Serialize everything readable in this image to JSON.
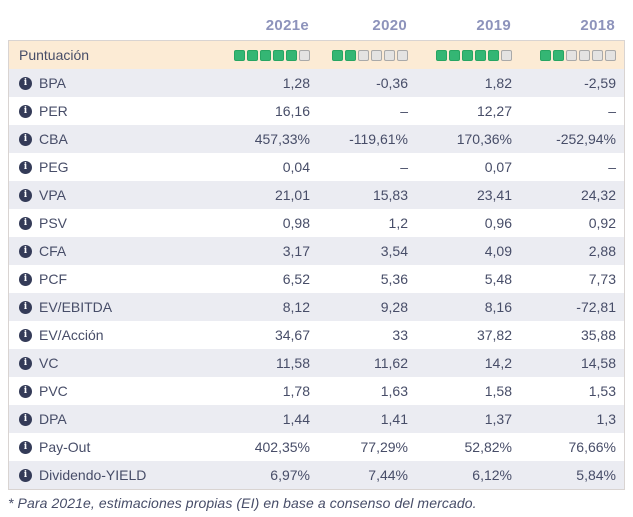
{
  "chart_data": {
    "type": "table",
    "columns": [
      "2021e",
      "2020",
      "2019",
      "2018"
    ],
    "score_row": {
      "label": "Puntuación",
      "max": 6,
      "filled": [
        5,
        2,
        5,
        2
      ]
    },
    "rows": [
      {
        "label": "BPA",
        "values": [
          "1,28",
          "-0,36",
          "1,82",
          "-2,59"
        ]
      },
      {
        "label": "PER",
        "values": [
          "16,16",
          "–",
          "12,27",
          "–"
        ]
      },
      {
        "label": "CBA",
        "values": [
          "457,33%",
          "-119,61%",
          "170,36%",
          "-252,94%"
        ]
      },
      {
        "label": "PEG",
        "values": [
          "0,04",
          "–",
          "0,07",
          "–"
        ]
      },
      {
        "label": "VPA",
        "values": [
          "21,01",
          "15,83",
          "23,41",
          "24,32"
        ]
      },
      {
        "label": "PSV",
        "values": [
          "0,98",
          "1,2",
          "0,96",
          "0,92"
        ]
      },
      {
        "label": "CFA",
        "values": [
          "3,17",
          "3,54",
          "4,09",
          "2,88"
        ]
      },
      {
        "label": "PCF",
        "values": [
          "6,52",
          "5,36",
          "5,48",
          "7,73"
        ]
      },
      {
        "label": "EV/EBITDA",
        "values": [
          "8,12",
          "9,28",
          "8,16",
          "-72,81"
        ]
      },
      {
        "label": "EV/Acción",
        "values": [
          "34,67",
          "33",
          "37,82",
          "35,88"
        ]
      },
      {
        "label": "VC",
        "values": [
          "11,58",
          "11,62",
          "14,2",
          "14,58"
        ]
      },
      {
        "label": "PVC",
        "values": [
          "1,78",
          "1,63",
          "1,58",
          "1,53"
        ]
      },
      {
        "label": "DPA",
        "values": [
          "1,44",
          "1,41",
          "1,37",
          "1,3"
        ]
      },
      {
        "label": "Pay-Out",
        "values": [
          "402,35%",
          "77,29%",
          "52,82%",
          "76,66%"
        ]
      },
      {
        "label": "Dividendo-YIELD",
        "values": [
          "6,97%",
          "7,44%",
          "6,12%",
          "5,84%"
        ]
      }
    ],
    "footnote": "* Para 2021e, estimaciones propias (EI) en base a consenso del mercado."
  },
  "icons": {
    "info": "info-icon"
  },
  "colors": {
    "header-text": "#8d93bb",
    "text": "#474d68",
    "score-bg": "#fcebd5",
    "row-alt-bg": "#ebecf2",
    "green-fill": "#34b674",
    "green-border": "#27a562",
    "empty-fill": "#e4e3e2",
    "empty-border": "#a9a9a9",
    "icon-bg": "#343b58",
    "table-border": "#d9d4d2"
  }
}
